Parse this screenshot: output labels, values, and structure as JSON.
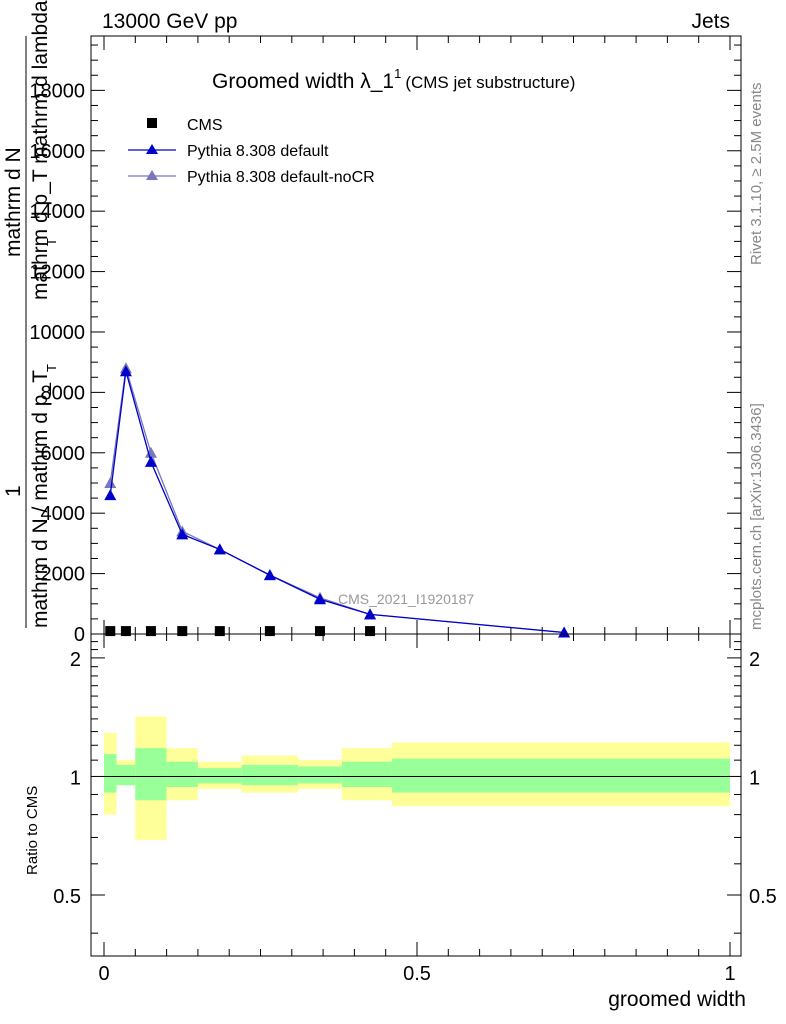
{
  "header": {
    "left": "13000 GeV pp",
    "right": "Jets"
  },
  "side_text": {
    "rivet": "Rivet 3.1.10, ≥ 2.5M events",
    "mcplots": "mcplots.cern.ch [arXiv:1306.3436]"
  },
  "title": {
    "main": "Groomed width λ_1",
    "sup": "1",
    "sub": "(CMS jet substructure)"
  },
  "watermark": "CMS_2021_I1920187",
  "ylabel": {
    "one": "1",
    "numerator": "mathrm d N",
    "denominator": "mathrm d p_T mathrm d lambda",
    "sub_T": "T",
    "lower": "mathrm d N / mathrm d p_T",
    "lower_sub": "T"
  },
  "ratio_ylabel": "Ratio to CMS",
  "xlabel": "groomed width",
  "legend": [
    {
      "name": "CMS",
      "color": "#000000",
      "marker": "square"
    },
    {
      "name": "Pythia 8.308 default",
      "color": "#0000cc",
      "marker": "triangle"
    },
    {
      "name": "Pythia 8.308 default-noCR",
      "color": "#7777bb",
      "marker": "triangle"
    }
  ],
  "chart_data": [
    {
      "type": "line",
      "panel": "main",
      "xlim": [
        0,
        1
      ],
      "ylim": [
        0,
        19800
      ],
      "yticks": [
        0,
        2000,
        4000,
        6000,
        8000,
        10000,
        12000,
        14000,
        16000,
        18000
      ],
      "ytick_labels": [
        "0",
        "2000",
        "4000",
        "6000",
        "8000",
        "10000",
        "12000",
        "14000",
        "16000",
        "18000"
      ],
      "series": [
        {
          "name": "CMS",
          "x": [
            0.01,
            0.035,
            0.075,
            0.125,
            0.185,
            0.265,
            0.345,
            0.425
          ],
          "y": [
            30,
            30,
            30,
            30,
            30,
            30,
            30,
            30
          ]
        },
        {
          "name": "Pythia 8.308 default",
          "x": [
            0.01,
            0.035,
            0.075,
            0.125,
            0.185,
            0.265,
            0.345,
            0.425,
            0.735
          ],
          "y": [
            4600,
            8700,
            5700,
            3300,
            2800,
            1950,
            1150,
            650,
            50
          ]
        },
        {
          "name": "Pythia 8.308 default-noCR",
          "x": [
            0.01,
            0.035,
            0.075,
            0.125,
            0.185,
            0.265,
            0.345,
            0.425,
            0.735
          ],
          "y": [
            5000,
            8800,
            6000,
            3400,
            2800,
            1950,
            1200,
            650,
            50
          ]
        }
      ]
    },
    {
      "type": "area",
      "panel": "ratio",
      "xlim": [
        0,
        1
      ],
      "ylim": [
        0.35,
        2.3
      ],
      "yticks": [
        0.5,
        1,
        2
      ],
      "ytick_labels": [
        "0.5",
        "1",
        "2"
      ],
      "xticks": [
        0,
        0.5,
        1
      ],
      "xtick_labels": [
        "0",
        "0.5",
        "1"
      ],
      "bins": [
        0,
        0.02,
        0.05,
        0.1,
        0.15,
        0.22,
        0.31,
        0.38,
        0.46,
        1.0
      ],
      "band_inner": {
        "color": "#99ff99",
        "lo": [
          0.91,
          0.95,
          0.87,
          0.94,
          0.96,
          0.95,
          0.96,
          0.94,
          0.91
        ],
        "hi": [
          1.14,
          1.07,
          1.18,
          1.09,
          1.05,
          1.07,
          1.06,
          1.09,
          1.11
        ]
      },
      "band_outer": {
        "color": "#ffff99",
        "lo": [
          0.8,
          0.95,
          0.69,
          0.87,
          0.93,
          0.91,
          0.93,
          0.87,
          0.84
        ],
        "hi": [
          1.29,
          1.1,
          1.42,
          1.18,
          1.09,
          1.13,
          1.1,
          1.18,
          1.22
        ]
      },
      "reference_line": 1
    }
  ]
}
